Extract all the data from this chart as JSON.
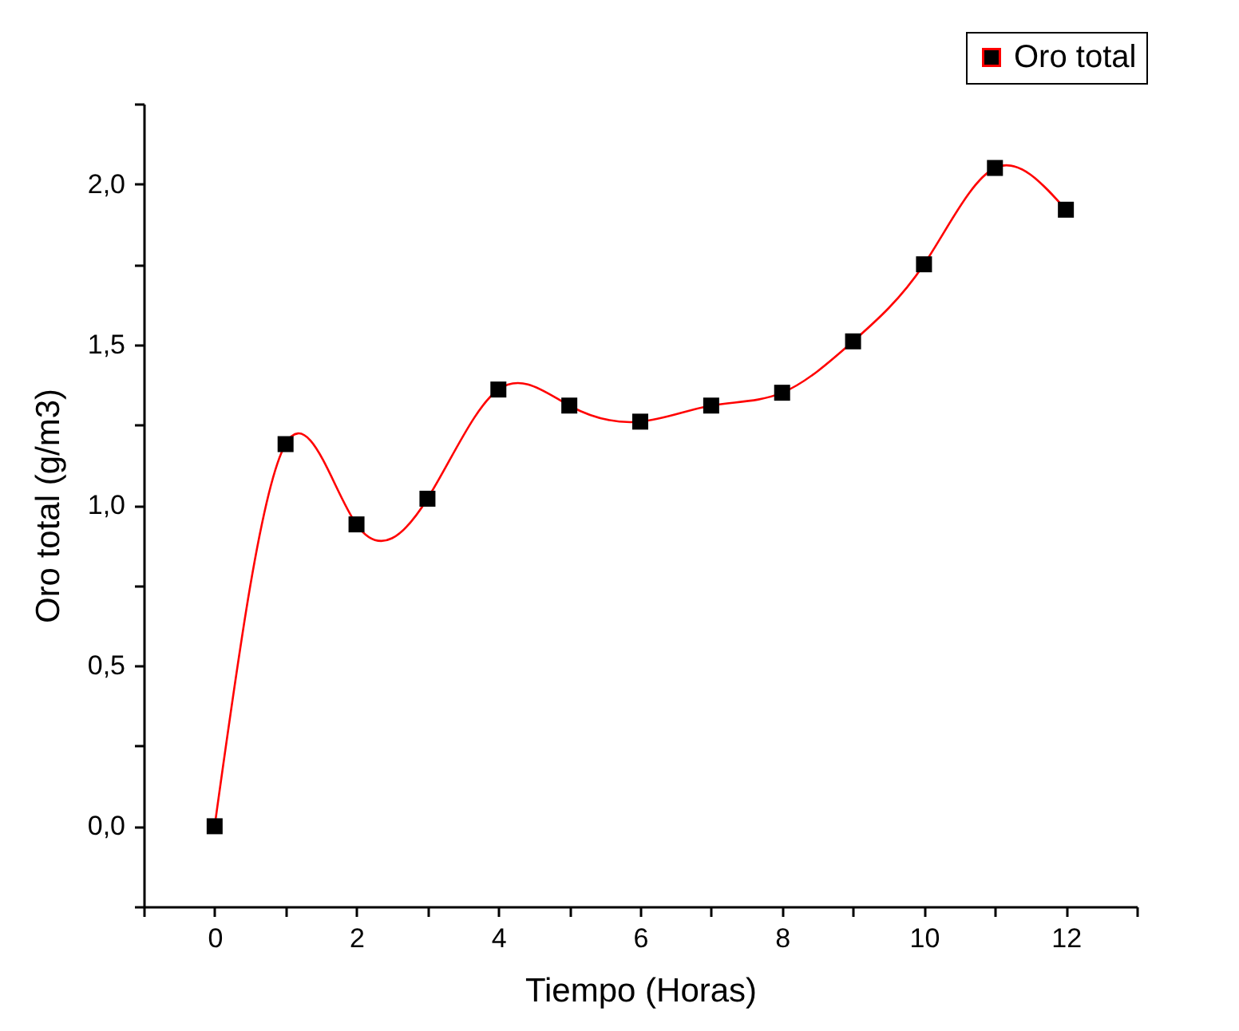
{
  "chart_data": {
    "type": "line",
    "xlabel": "Tiempo (Horas)",
    "ylabel": "Oro total (g/m3)",
    "x": [
      0,
      1,
      2,
      3,
      4,
      5,
      6,
      7,
      8,
      9,
      10,
      11,
      12
    ],
    "series": [
      {
        "name": "Oro total",
        "color": "#ff0000",
        "values": [
          0,
          1.19,
          0.94,
          1.02,
          1.36,
          1.31,
          1.26,
          1.31,
          1.35,
          1.51,
          1.75,
          2.05,
          1.92
        ]
      }
    ],
    "xlim": [
      -1,
      13
    ],
    "xticks": [
      {
        "value": -1,
        "label": null
      },
      0,
      {
        "value": 1,
        "label": null
      },
      2,
      {
        "value": 3,
        "label": null
      },
      4,
      {
        "value": 5,
        "label": null
      },
      6,
      {
        "value": 7,
        "label": null
      },
      8,
      {
        "value": 9,
        "label": null
      },
      10,
      {
        "value": 11,
        "label": null
      },
      12,
      {
        "value": 13,
        "label": null
      }
    ],
    "ylim": [
      -0.25,
      2.25
    ],
    "yticks": [
      {
        "value": -0.25,
        "label": null
      },
      {
        "value": 0,
        "label": "0,0"
      },
      {
        "value": 0.25,
        "label": null
      },
      {
        "value": 0.5,
        "label": "0,5"
      },
      {
        "value": 0.75,
        "label": null
      },
      {
        "value": 1,
        "label": "1,0"
      },
      {
        "value": 1.25,
        "label": null
      },
      {
        "value": 1.5,
        "label": "1,5"
      },
      {
        "value": 1.75,
        "label": null
      },
      {
        "value": 2,
        "label": "2,0"
      },
      {
        "value": 2.25,
        "label": null
      }
    ],
    "grid": false,
    "legend": "top right",
    "marker": "square",
    "line_style": "solid"
  }
}
